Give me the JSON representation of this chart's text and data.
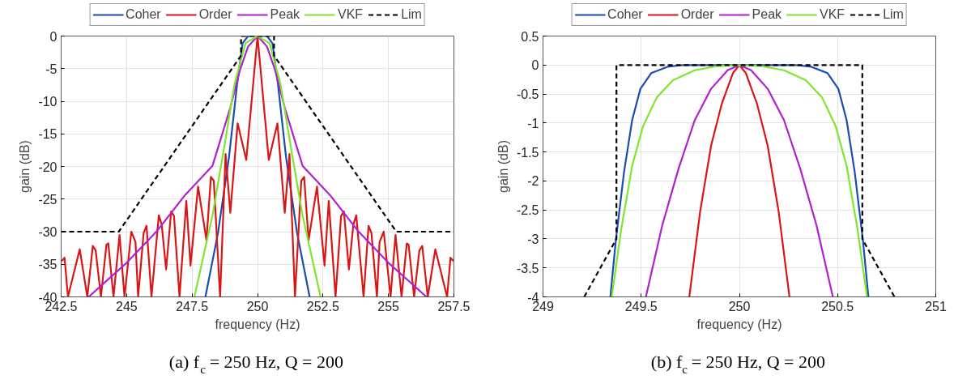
{
  "chart_data": [
    {
      "type": "line",
      "title": "(a) f$_{c}$ = 250 Hz, Q = 200",
      "xlabel": "frequency (Hz)",
      "ylabel": "gain (dB)",
      "xlim": [
        242.5,
        257.5
      ],
      "ylim": [
        -40,
        0
      ],
      "xticks": [
        242.5,
        245,
        247.5,
        250,
        252.5,
        255,
        257.5
      ],
      "yticks": [
        -40,
        -35,
        -30,
        -25,
        -20,
        -15,
        -10,
        -5,
        0
      ],
      "grid": true,
      "legend": "top",
      "series": [
        {
          "name": "Coher",
          "color": "#1a4db0",
          "type": "line",
          "x": [
            248.01,
            248.49,
            248.91,
            249.22,
            249.43,
            249.64,
            250,
            250.36,
            250.57,
            250.78,
            251.09,
            251.51,
            251.99
          ],
          "values": [
            -40,
            -30.2,
            -18.6,
            -7.4,
            -1.1,
            0,
            0,
            0,
            -1.1,
            -7.4,
            -18.6,
            -30.2,
            -40
          ]
        },
        {
          "name": "Order",
          "color": "#d91515",
          "type": "line",
          "x": [
            242.52,
            242.63,
            242.76,
            243.21,
            243.5,
            243.71,
            243.82,
            244.02,
            244.23,
            244.3,
            244.5,
            244.73,
            244.92,
            245.18,
            245.34,
            245.44,
            245.65,
            245.76,
            245.95,
            246.23,
            246.34,
            246.51,
            246.7,
            246.81,
            247.02,
            247.28,
            247.44,
            247.73,
            248.05,
            248.22,
            248.33,
            248.57,
            248.78,
            248.96,
            249.24,
            249.57,
            250,
            250.43,
            250.76,
            251.04,
            251.22,
            251.43,
            251.67,
            251.78,
            251.95,
            252.27,
            252.56,
            252.72,
            252.98,
            253.19,
            253.3,
            253.49,
            253.66,
            253.77,
            254.05,
            254.24,
            254.35,
            254.56,
            254.66,
            254.82,
            255.08,
            255.27,
            255.5,
            255.7,
            255.77,
            255.98,
            256.18,
            256.29,
            256.5,
            256.79,
            257.24,
            257.37,
            257.48
          ],
          "values": [
            -34.5,
            -34,
            -40,
            -32.7,
            -40,
            -32.2,
            -32.9,
            -40,
            -32,
            -31.8,
            -40,
            -30.5,
            -40,
            -30,
            -31.6,
            -40,
            -30.2,
            -29.1,
            -40,
            -27.5,
            -28.9,
            -35.8,
            -26.9,
            -27.6,
            -40,
            -25.3,
            -35.2,
            -23.1,
            -31.3,
            -21.6,
            -22.2,
            -40,
            -18.1,
            -27.1,
            -13.4,
            -19,
            0,
            -19,
            -13.4,
            -27.1,
            -18.1,
            -40,
            -22.2,
            -21.6,
            -31.3,
            -23.1,
            -35.2,
            -25.3,
            -40,
            -27.6,
            -26.9,
            -35.8,
            -28.9,
            -27.5,
            -40,
            -29.1,
            -30.2,
            -40,
            -31.6,
            -30,
            -40,
            -30.5,
            -40,
            -31.8,
            -32,
            -40,
            -32.9,
            -32.2,
            -40,
            -32.7,
            -40,
            -34,
            -34.5
          ]
        },
        {
          "name": "Peak",
          "color": "#b31fcf",
          "type": "line",
          "x": [
            243.55,
            245.02,
            246.18,
            247.23,
            248.28,
            248.96,
            249.33,
            249.64,
            250,
            250.36,
            250.67,
            251.04,
            251.72,
            252.77,
            253.82,
            254.98,
            256.45
          ],
          "values": [
            -40,
            -34.7,
            -29.8,
            -24.4,
            -19.9,
            -11,
            -5.2,
            -1.6,
            0,
            -1.6,
            -5.2,
            -11,
            -19.9,
            -24.4,
            -29.8,
            -34.7,
            -40
          ]
        },
        {
          "name": "VKF",
          "color": "#7ee62e",
          "type": "line",
          "x": [
            247.59,
            248.28,
            248.7,
            249.12,
            249.54,
            250,
            250.46,
            250.88,
            251.3,
            251.72,
            252.41
          ],
          "values": [
            -40,
            -27.5,
            -17.7,
            -7.4,
            -1.1,
            0,
            -1.1,
            -7.4,
            -17.7,
            -27.5,
            -40
          ]
        },
        {
          "name": "Lim",
          "color": "#000000",
          "type": "line",
          "line_style": "dashed",
          "x": [
            242.5,
            244.7,
            249.37,
            249.37,
            250.63,
            250.63,
            255.3,
            257.5
          ],
          "values": [
            -30,
            -30,
            -3,
            0,
            0,
            -3,
            -30,
            -30
          ]
        }
      ]
    },
    {
      "type": "line",
      "title": "(b) f$_{c}$ = 250 Hz, Q = 200",
      "xlabel": "frequency (Hz)",
      "ylabel": "gain (dB)",
      "xlim": [
        249,
        251
      ],
      "ylim": [
        -4,
        0.5
      ],
      "xticks": [
        249,
        249.5,
        250,
        250.5,
        251
      ],
      "yticks": [
        -4,
        -3.5,
        -3,
        -2.5,
        -2,
        -1.5,
        -1,
        -0.5,
        0,
        0.5
      ],
      "grid": true,
      "legend": "top",
      "series": [
        {
          "name": "Coher",
          "color": "#1a4db0",
          "type": "line",
          "x": [
            249.343,
            249.371,
            249.413,
            249.454,
            249.496,
            249.551,
            249.634,
            249.717,
            250,
            250.283,
            250.366,
            250.449,
            250.504,
            250.546,
            250.587,
            250.629,
            250.657
          ],
          "values": [
            -4,
            -3.02,
            -1.84,
            -0.95,
            -0.41,
            -0.14,
            -0.03,
            0,
            0,
            0,
            -0.03,
            -0.14,
            -0.41,
            -0.95,
            -1.84,
            -3.02,
            -4
          ]
        },
        {
          "name": "Order",
          "color": "#d91515",
          "type": "line",
          "x": [
            249.745,
            249.8,
            249.856,
            249.911,
            249.967,
            250,
            250.033,
            250.089,
            250.144,
            250.2,
            250.255
          ],
          "values": [
            -4,
            -2.53,
            -1.39,
            -0.66,
            -0.14,
            0,
            -0.14,
            -0.66,
            -1.39,
            -2.53,
            -4
          ]
        },
        {
          "name": "Peak",
          "color": "#b31fcf",
          "type": "line",
          "x": [
            249.524,
            249.607,
            249.69,
            249.773,
            249.856,
            249.94,
            250,
            250.06,
            250.144,
            250.227,
            250.31,
            250.393,
            250.476
          ],
          "values": [
            -4,
            -2.77,
            -1.79,
            -0.95,
            -0.41,
            -0.09,
            0,
            -0.09,
            -0.41,
            -0.95,
            -1.79,
            -2.77,
            -4
          ]
        },
        {
          "name": "VKF",
          "color": "#7ee62e",
          "type": "line",
          "x": [
            249.35,
            249.399,
            249.454,
            249.51,
            249.579,
            249.662,
            249.773,
            249.884,
            250,
            250.116,
            250.227,
            250.338,
            250.421,
            250.49,
            250.546,
            250.601,
            250.65
          ],
          "values": [
            -4,
            -2.82,
            -1.74,
            -1.05,
            -0.56,
            -0.26,
            -0.09,
            -0.02,
            0,
            -0.02,
            -0.09,
            -0.26,
            -0.56,
            -1.05,
            -1.74,
            -2.82,
            -4
          ]
        },
        {
          "name": "Lim",
          "color": "#000000",
          "type": "line",
          "line_style": "dashed",
          "x": [
            249.21,
            249.374,
            249.374,
            250.626,
            250.626,
            250.79
          ],
          "values": [
            -4,
            -3,
            0,
            0,
            -3,
            -4
          ]
        }
      ]
    }
  ]
}
